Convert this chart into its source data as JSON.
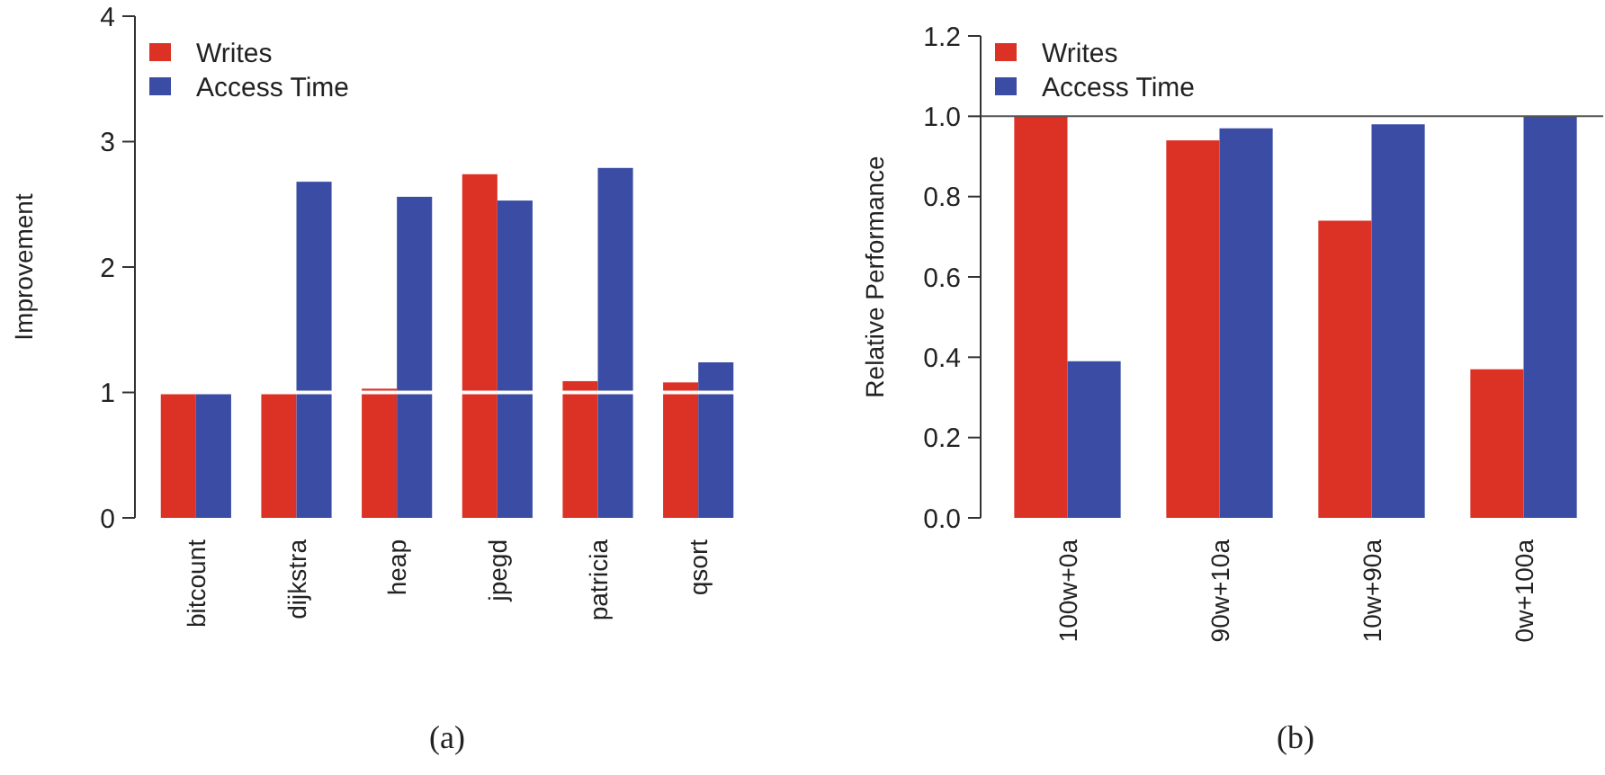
{
  "chart_data": [
    {
      "type": "bar",
      "ylabel": "Improvement",
      "categories": [
        "bitcount",
        "dijkstra",
        "heap",
        "jpegd",
        "patricia",
        "qsort"
      ],
      "series": [
        {
          "name": "Writes",
          "color": "#dc3125",
          "values": [
            0.99,
            0.99,
            1.03,
            2.74,
            1.09,
            1.08
          ]
        },
        {
          "name": "Access Time",
          "color": "#3a4ca3",
          "values": [
            0.99,
            2.68,
            2.56,
            2.53,
            2.79,
            1.24
          ]
        }
      ],
      "ylim": [
        0,
        4
      ],
      "yticks": [
        0,
        1,
        2,
        3,
        4
      ],
      "legend": "top left",
      "grid": false,
      "ref_lines": [
        {
          "axis": "y",
          "value": 1,
          "color": "#ffffff"
        }
      ],
      "annotations": [
        "(a)"
      ]
    },
    {
      "type": "bar",
      "ylabel": "Relative Performance",
      "categories": [
        "100w+0a",
        "90w+10a",
        "10w+90a",
        "0w+100a"
      ],
      "series": [
        {
          "name": "Writes",
          "color": "#dc3125",
          "values": [
            1.0,
            0.94,
            0.74,
            0.37
          ]
        },
        {
          "name": "Access Time",
          "color": "#3a4ca3",
          "values": [
            0.39,
            0.97,
            0.98,
            1.0
          ]
        }
      ],
      "ylim": [
        0,
        1.2
      ],
      "yticks": [
        {
          "value": 0,
          "label": "0.0"
        },
        0.2,
        0.4,
        0.6,
        0.8,
        {
          "value": 1,
          "label": "1.0"
        },
        1.2
      ],
      "legend": "top left",
      "grid": false,
      "ref_lines": [
        {
          "axis": "y",
          "value": 1,
          "color": "#555555"
        }
      ],
      "annotations": [
        "(b)"
      ]
    }
  ]
}
